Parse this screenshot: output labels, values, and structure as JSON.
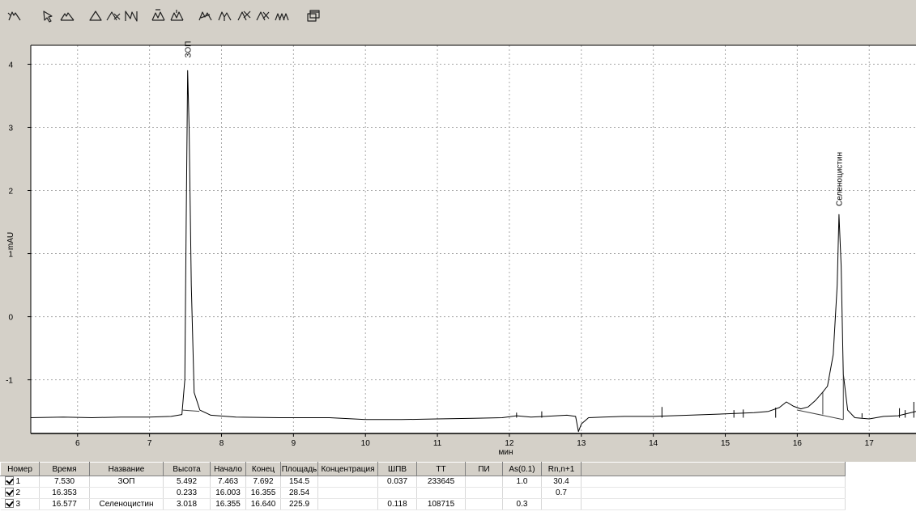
{
  "toolbar": {
    "tools": [
      {
        "icon": "peak-detect-icon"
      },
      {
        "icon": "pointer-icon"
      },
      {
        "icon": "baseline-icon"
      },
      {
        "icon": "peak-add-icon"
      },
      {
        "icon": "peak-delete-icon"
      },
      {
        "icon": "integration-icon"
      },
      {
        "icon": "peak-split-icon"
      },
      {
        "icon": "peak-merge-icon"
      },
      {
        "icon": "tangent-skim-icon"
      },
      {
        "icon": "valley-drop-icon"
      },
      {
        "icon": "peak-exclude-icon"
      },
      {
        "icon": "peak-reject-icon"
      },
      {
        "icon": "peak-group-icon"
      },
      {
        "icon": "copy-window-icon"
      }
    ]
  },
  "chart_data": {
    "type": "line",
    "xlabel": "мин",
    "ylabel": "mAU",
    "xlim": [
      5.35,
      17.65
    ],
    "ylim": [
      -1.85,
      4.3
    ],
    "grid": true,
    "x_ticks": [
      6,
      7,
      8,
      9,
      10,
      11,
      12,
      13,
      14,
      15,
      16,
      17
    ],
    "y_ticks": [
      -1,
      0,
      1,
      2,
      3,
      4
    ],
    "baseline_level": -1.6,
    "peaks": [
      {
        "label": "ЗОП",
        "time": 7.53,
        "apex": 4.05,
        "start": 7.463,
        "end": 7.692
      },
      {
        "label": "Селеноцистин",
        "time": 16.577,
        "apex": 1.7,
        "start": 16.355,
        "end": 16.64
      }
    ],
    "series": [
      {
        "x": [
          5.35,
          5.8,
          6.2,
          6.6,
          7.0,
          7.3,
          7.45,
          7.49,
          7.51,
          7.53,
          7.55,
          7.58,
          7.62,
          7.7,
          7.85,
          8.2,
          8.8,
          9.5,
          10.0,
          10.5,
          11.0,
          11.5,
          11.9,
          12.1,
          12.3,
          12.5,
          12.8,
          12.92,
          12.96,
          13.0,
          13.1,
          13.3,
          13.6,
          14.0,
          14.5,
          15.0,
          15.4,
          15.6,
          15.75,
          15.85,
          15.95,
          16.05,
          16.15,
          16.25,
          16.35,
          16.42,
          16.5,
          16.555,
          16.58,
          16.61,
          16.64,
          16.7,
          16.8,
          17.0,
          17.2,
          17.4,
          17.65
        ],
        "y": [
          -1.6,
          -1.59,
          -1.6,
          -1.59,
          -1.59,
          -1.58,
          -1.55,
          -1.0,
          1.5,
          3.9,
          3.0,
          0.5,
          -1.2,
          -1.48,
          -1.56,
          -1.59,
          -1.6,
          -1.6,
          -1.63,
          -1.63,
          -1.62,
          -1.61,
          -1.6,
          -1.57,
          -1.59,
          -1.58,
          -1.56,
          -1.58,
          -1.82,
          -1.7,
          -1.6,
          -1.59,
          -1.58,
          -1.58,
          -1.56,
          -1.54,
          -1.52,
          -1.5,
          -1.44,
          -1.35,
          -1.42,
          -1.46,
          -1.43,
          -1.33,
          -1.2,
          -1.1,
          -0.6,
          0.5,
          1.62,
          0.8,
          -0.9,
          -1.48,
          -1.6,
          -1.62,
          -1.58,
          -1.57,
          -1.5
        ]
      }
    ]
  },
  "table": {
    "columns": [
      "Номер",
      "Время",
      "Название",
      "Высота",
      "Начало",
      "Конец",
      "Площадь",
      "Концентрация",
      "ШПВ",
      "ТТ",
      "ПИ",
      "As(0.1)",
      "Rn,n+1"
    ],
    "rows": [
      [
        "1",
        "7.530",
        "ЗОП",
        "5.492",
        "7.463",
        "7.692",
        "154.5",
        "",
        "0.037",
        "233645",
        "",
        "1.0",
        "30.4"
      ],
      [
        "2",
        "16.353",
        "",
        "0.233",
        "16.003",
        "16.355",
        "28.54",
        "",
        "",
        "",
        "",
        "",
        "0.7"
      ],
      [
        "3",
        "16.577",
        "Селеноцистин",
        "3.018",
        "16.355",
        "16.640",
        "225.9",
        "",
        "0.118",
        "108715",
        "",
        "0.3",
        ""
      ]
    ]
  }
}
